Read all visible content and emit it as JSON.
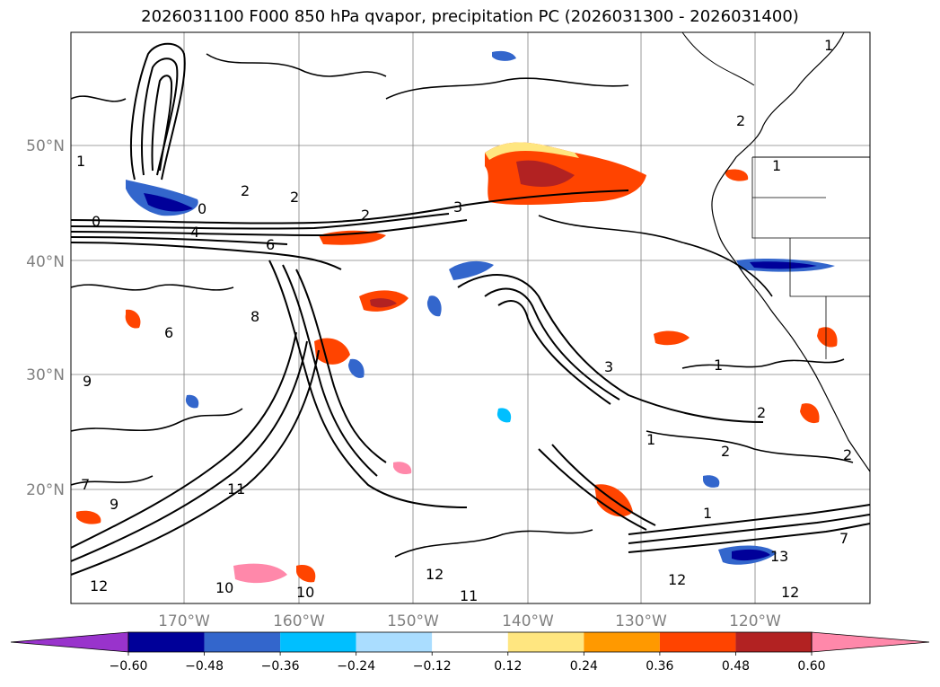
{
  "title": "2026031100 F000 850 hPa qvapor, precipitation PC (2026031300 - 2026031400)",
  "lat_ticks": [
    "50°N",
    "40°N",
    "30°N",
    "20°N"
  ],
  "lon_ticks": [
    "170°W",
    "160°W",
    "150°W",
    "140°W",
    "130°W",
    "120°W"
  ],
  "colorbar": {
    "ticks": [
      "−0.60",
      "−0.48",
      "−0.36",
      "−0.24",
      "−0.12",
      "0.12",
      "0.24",
      "0.36",
      "0.48",
      "0.60"
    ],
    "colors": [
      "#9933cc",
      "#000099",
      "#3366cc",
      "#00bfff",
      "#aaddff",
      "#ffffff",
      "#ffe680",
      "#ff9900",
      "#ff4400",
      "#b22222",
      "#ff88aa"
    ],
    "extend": "both"
  },
  "contour_labels": [
    "2",
    "3",
    "6",
    "8",
    "9",
    "12",
    "1",
    "0",
    "7",
    "11",
    "13",
    "10",
    "4"
  ],
  "colors": {
    "gridline": "#808080",
    "contour": "#000000",
    "coastline": "#000000"
  }
}
